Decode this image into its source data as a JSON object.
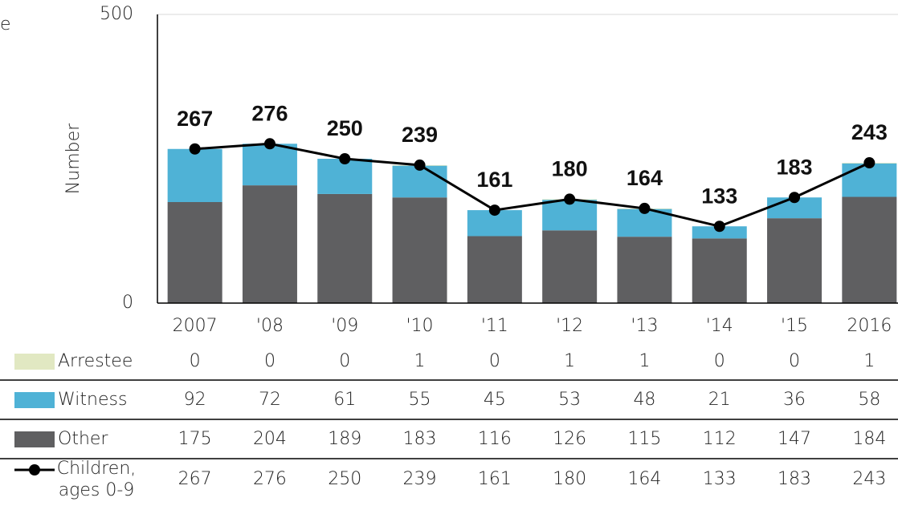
{
  "chart_data": {
    "type": "bar",
    "title": "e",
    "y_label": "Number",
    "categories": [
      "2007",
      "'08",
      "'09",
      "'10",
      "'11",
      "'12",
      "'13",
      "'14",
      "'15",
      "2016"
    ],
    "ylim": [
      0,
      500
    ],
    "yticks": [
      0,
      500
    ],
    "stacked": true,
    "series": [
      {
        "name": "Other",
        "color": "#5f5f61",
        "values": [
          175,
          204,
          189,
          183,
          116,
          126,
          115,
          112,
          147,
          184
        ]
      },
      {
        "name": "Witness",
        "color": "#4fb2d6",
        "values": [
          92,
          72,
          61,
          55,
          45,
          53,
          48,
          21,
          36,
          58
        ]
      },
      {
        "name": "Arrestee",
        "color": "#e1e8c2",
        "values": [
          0,
          0,
          0,
          1,
          0,
          1,
          1,
          0,
          0,
          1
        ]
      },
      {
        "name": "Children, ages 0-9",
        "type": "line",
        "color": "#000000",
        "values": [
          267,
          276,
          250,
          239,
          161,
          180,
          164,
          133,
          183,
          243
        ]
      }
    ]
  }
}
